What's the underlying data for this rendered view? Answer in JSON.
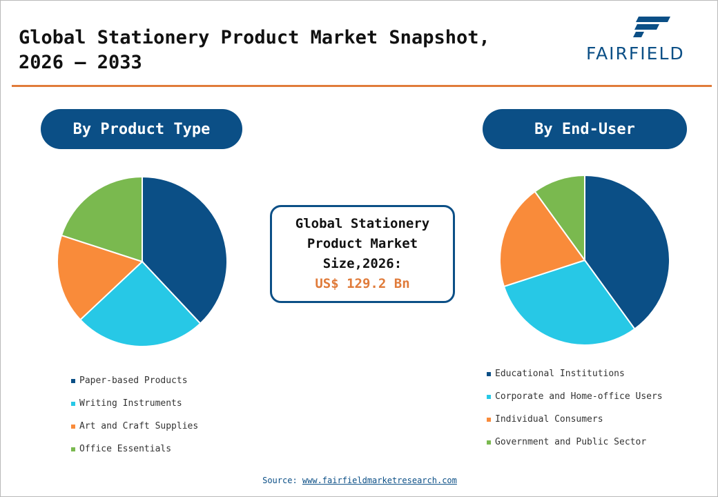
{
  "header": {
    "title": "Global Stationery Product Market Snapshot,\n2026 – 2033",
    "logo_text": "FAIRFIELD"
  },
  "colors": {
    "navy": "#0b4f86",
    "cyan": "#27c8e6",
    "orange": "#f98b3a",
    "green": "#7ab94f",
    "accent_orange": "#e07b3a"
  },
  "center_box": {
    "label": "Global Stationery\nProduct Market\nSize,2026:",
    "value": "US$ 129.2 Bn"
  },
  "chart_data": [
    {
      "type": "pie",
      "title": "By Product Type",
      "series": [
        {
          "name": "Paper-based Products",
          "value": 38,
          "color": "#0b4f86"
        },
        {
          "name": "Writing Instruments",
          "value": 25,
          "color": "#27c8e6"
        },
        {
          "name": "Art and Craft Supplies",
          "value": 17,
          "color": "#f98b3a"
        },
        {
          "name": "Office Essentials",
          "value": 20,
          "color": "#7ab94f"
        }
      ],
      "legend_position": "bottom"
    },
    {
      "type": "pie",
      "title": "By End-User",
      "series": [
        {
          "name": "Educational Institutions",
          "value": 40,
          "color": "#0b4f86"
        },
        {
          "name": "Corporate and Home-office Users",
          "value": 30,
          "color": "#27c8e6"
        },
        {
          "name": "Individual Consumers",
          "value": 20,
          "color": "#f98b3a"
        },
        {
          "name": "Government and Public Sector",
          "value": 10,
          "color": "#7ab94f"
        }
      ],
      "legend_position": "bottom"
    }
  ],
  "footer": {
    "source_label": "Source: ",
    "source_url": "www.fairfieldmarketresearch.com"
  }
}
